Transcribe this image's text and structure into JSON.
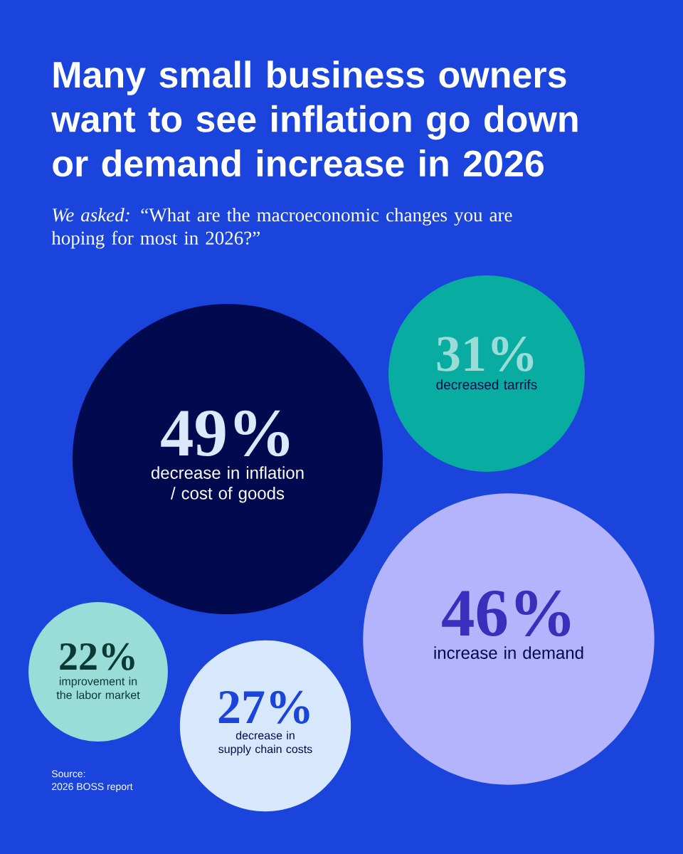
{
  "chart_data": {
    "type": "other",
    "title": "Many small business owners want to see inflation go down or demand increase in 2026",
    "subtitle": "*We asked:* “What are the macroeconomic changes you are hoping for most in 2026?”",
    "categories": [
      "decrease in inflation / cost of goods",
      "decreased tarrifs",
      "increase in demand",
      "improvement in the labor market",
      "decrease in supply chain costs"
    ],
    "values": [
      49,
      31,
      46,
      22,
      27
    ],
    "value_labels": [
      "49%",
      "31%",
      "46%",
      "22%",
      "27%"
    ],
    "colors": [
      "#020a4f",
      "#08aca0",
      "#b4b4fc",
      "#9adcd8",
      "#d8e8fc"
    ],
    "annotations": [
      "Source:",
      "2026 BOSS report"
    ]
  }
}
